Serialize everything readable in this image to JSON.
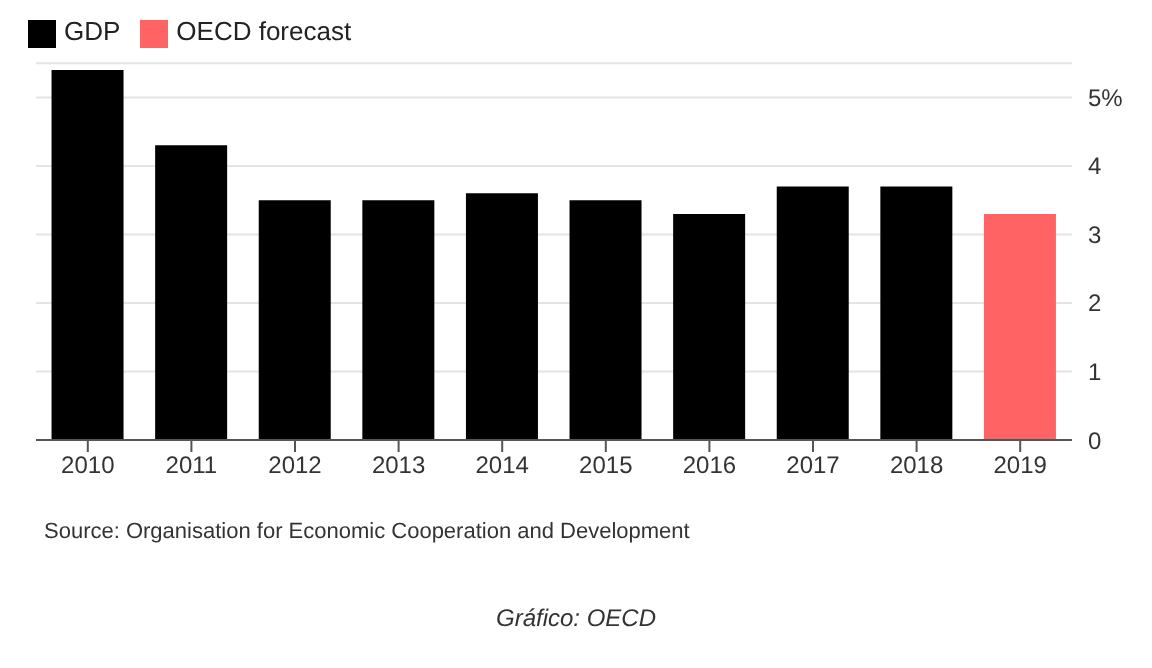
{
  "chart_data": {
    "type": "bar",
    "categories": [
      "2010",
      "2011",
      "2012",
      "2013",
      "2014",
      "2015",
      "2016",
      "2017",
      "2018",
      "2019"
    ],
    "series": [
      {
        "name": "GDP",
        "color": "#000000",
        "values": [
          5.4,
          4.3,
          3.5,
          3.5,
          3.6,
          3.5,
          3.3,
          3.7,
          3.7,
          null
        ]
      },
      {
        "name": "OECD forecast",
        "color": "#ff6363",
        "values": [
          null,
          null,
          null,
          null,
          null,
          null,
          null,
          null,
          null,
          3.3
        ]
      }
    ],
    "stacked": true,
    "ylim": [
      0,
      5.5
    ],
    "yticks": [
      0,
      1,
      2,
      3,
      4,
      {
        "value": 5,
        "label": "5%"
      }
    ],
    "grid": "y",
    "legend": "top left",
    "annotations": [
      "Source: Organisation for Economic Cooperation and Development",
      "Gráfico: OECD"
    ]
  }
}
